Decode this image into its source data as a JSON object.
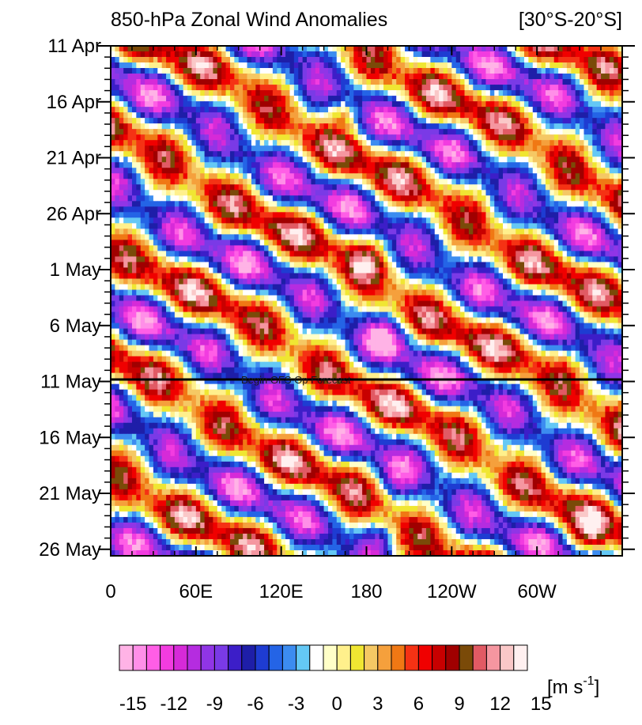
{
  "chart_data": {
    "type": "heatmap",
    "title": "850-hPa Zonal Wind Anomalies",
    "region_label": "[30°S-20°S]",
    "x_ticks": [
      {
        "label": "0",
        "lon": 0
      },
      {
        "label": "60E",
        "lon": 60
      },
      {
        "label": "120E",
        "lon": 120
      },
      {
        "label": "180",
        "lon": 180
      },
      {
        "label": "120W",
        "lon": 240
      },
      {
        "label": "60W",
        "lon": 300
      }
    ],
    "xlim": [
      0,
      360
    ],
    "y_ticks": [
      {
        "label": "11 Apr",
        "day": 0
      },
      {
        "label": "16 Apr",
        "day": 5
      },
      {
        "label": "21 Apr",
        "day": 10
      },
      {
        "label": "26 Apr",
        "day": 15
      },
      {
        "label": "1 May",
        "day": 20
      },
      {
        "label": "6 May",
        "day": 25
      },
      {
        "label": "11 May",
        "day": 30
      },
      {
        "label": "16 May",
        "day": 35
      },
      {
        "label": "21 May",
        "day": 40
      },
      {
        "label": "26 May",
        "day": 45
      }
    ],
    "ylim": [
      "11 Apr",
      "27 May"
    ],
    "annotation": {
      "text": "Begin GFS Op Forecast",
      "date": "11 May"
    },
    "colorbar": {
      "unit_base": "[m s",
      "unit_exp": "-1",
      "unit_close": "]",
      "tick_labels": [
        "-15",
        "-12",
        "-9",
        "-6",
        "-3",
        "0",
        "3",
        "6",
        "9",
        "12",
        "15"
      ],
      "tick_values": [
        -15,
        -12,
        -9,
        -6,
        -3,
        0,
        3,
        6,
        9,
        12,
        15
      ],
      "colors": [
        "#ffb3e6",
        "#ff8fe8",
        "#ff5ee6",
        "#f23ce0",
        "#d62ad8",
        "#b52ce0",
        "#9035e6",
        "#7a3ae6",
        "#3c1ec8",
        "#1e1ea8",
        "#1e3cd2",
        "#2464e6",
        "#3c8cf0",
        "#64c8f5",
        "#ffffff",
        "#ffffc8",
        "#fff08c",
        "#f0e632",
        "#f5c864",
        "#f5a03c",
        "#f07814",
        "#f53214",
        "#f00000",
        "#c80000",
        "#a00000",
        "#7a4a08",
        "#e15a64",
        "#f596a0",
        "#fac8c8",
        "#fff0f0"
      ]
    }
  }
}
